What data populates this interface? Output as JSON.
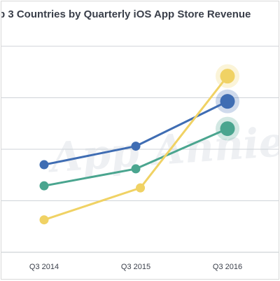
{
  "title": "p 3 Countries by Quarterly iOS App Store Revenue",
  "watermark_text": "App Annie",
  "chart_data": {
    "type": "line",
    "categories": [
      "Q3 2014",
      "Q3 2015",
      "Q3 2016"
    ],
    "x_ticks": [
      "Q3 2014",
      "Q3 2015",
      "Q3 2016"
    ],
    "x_positions": [
      0,
      2,
      4
    ],
    "ylim": [
      0,
      4
    ],
    "grid": true,
    "series": [
      {
        "color": "#3f6db3",
        "x": [
          0,
          2,
          4
        ],
        "values": [
          1.7,
          2.06,
          2.93
        ]
      },
      {
        "color": "#4aa58f",
        "x": [
          0,
          2,
          4
        ],
        "values": [
          1.29,
          1.62,
          2.4
        ]
      },
      {
        "color": "#f0d264",
        "x": [
          0,
          2.1,
          4
        ],
        "values": [
          0.63,
          1.25,
          3.42
        ]
      }
    ]
  }
}
